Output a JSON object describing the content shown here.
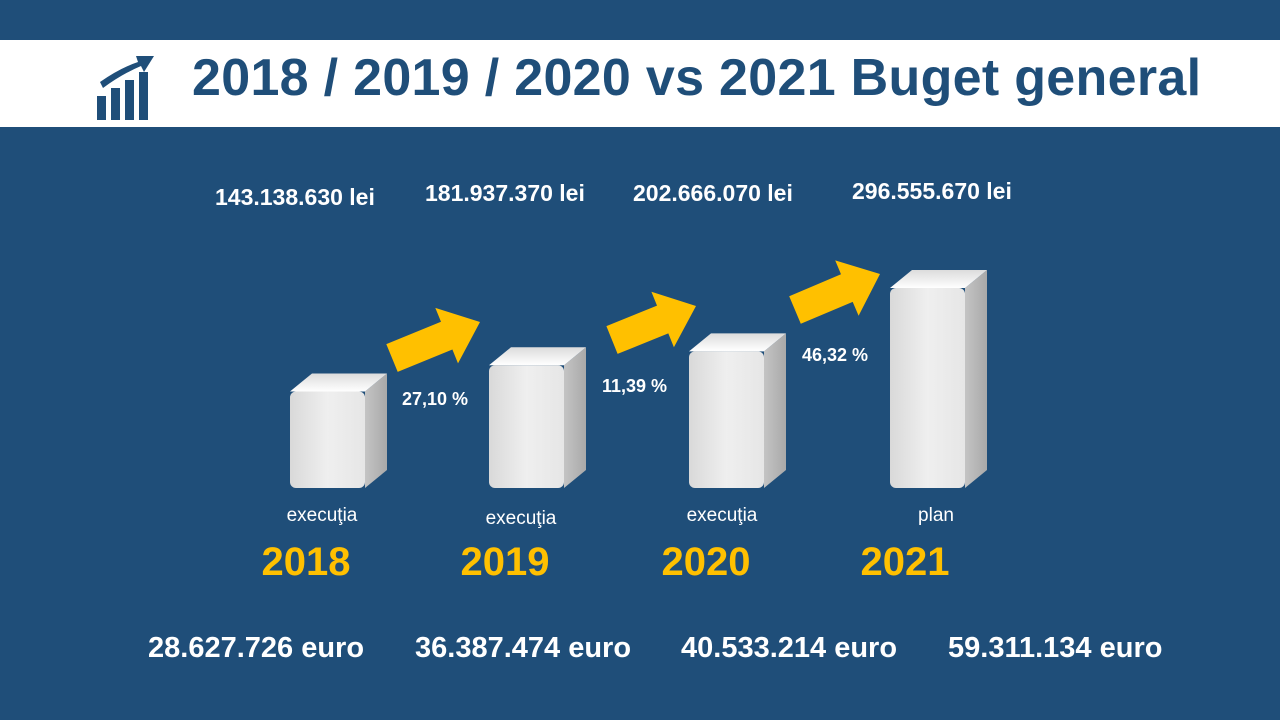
{
  "header": {
    "title": "2018 / 2019 / 2020 vs 2021 Buget general",
    "icon": "rising-bar-chart-icon"
  },
  "colors": {
    "background": "#1f4e79",
    "title_text": "#1f4e79",
    "year_label": "#ffc000",
    "arrow": "#ffc000",
    "bar_face": "#efefef",
    "bar_side": "#a9a9a9"
  },
  "chart_data": {
    "type": "bar",
    "categories": [
      "2018",
      "2019",
      "2020",
      "2021"
    ],
    "values": [
      143138630,
      181937370,
      202666070,
      296555670
    ],
    "value_labels": [
      "143.138.630 lei",
      "181.937.370 lei",
      "202.666.070 lei",
      "296.555.670 lei"
    ],
    "euro_labels": [
      "28.627.726 euro",
      "36.387.474 euro",
      "40.533.214 euro",
      "59.311.134 euro"
    ],
    "modes": [
      "execuţia",
      "execuţia",
      "execuţia",
      "plan"
    ],
    "growth": [
      "27,10 %",
      "11,39 %",
      "46,32 %"
    ],
    "title": "2018 / 2019 / 2020 vs 2021 Buget general",
    "xlabel": "",
    "ylabel": "",
    "grid": false
  }
}
